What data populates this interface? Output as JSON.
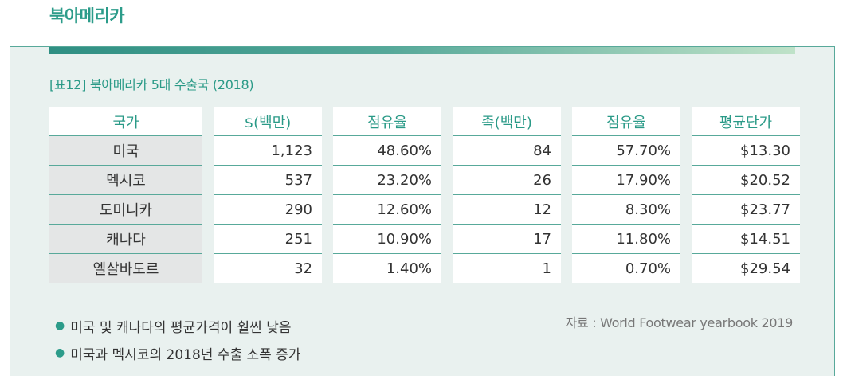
{
  "heading": "북아메리카",
  "table_title": "[표12] 북아메리카 5대 수출국 (2018)",
  "columns": [
    "국가",
    "$(백만)",
    "점유율",
    "족(백만)",
    "점유율",
    "평균단가"
  ],
  "rows": [
    {
      "country": "미국",
      "usd": "1,123",
      "usd_share": "48.60%",
      "pairs": "84",
      "pairs_share": "57.70%",
      "avg_price": "$13.30"
    },
    {
      "country": "멕시코",
      "usd": "537",
      "usd_share": "23.20%",
      "pairs": "26",
      "pairs_share": "17.90%",
      "avg_price": "$20.52"
    },
    {
      "country": "도미니카",
      "usd": "290",
      "usd_share": "12.60%",
      "pairs": "12",
      "pairs_share": "8.30%",
      "avg_price": "$23.77"
    },
    {
      "country": "캐나다",
      "usd": "251",
      "usd_share": "10.90%",
      "pairs": "17",
      "pairs_share": "11.80%",
      "avg_price": "$14.51"
    },
    {
      "country": "엘살바도르",
      "usd": "32",
      "usd_share": "1.40%",
      "pairs": "1",
      "pairs_share": "0.70%",
      "avg_price": "$29.54"
    }
  ],
  "notes": [
    "미국 및 캐나다의 평균가격이 훨씬 낮음",
    "미국과 멕시코의 2018년 수출 소폭 증가"
  ],
  "source": "자료 : World Footwear yearbook 2019",
  "colors": {
    "accent": "#2c9c8a",
    "panel_bg": "#e9f1ef",
    "country_cell_bg": "#e4e6e6"
  }
}
